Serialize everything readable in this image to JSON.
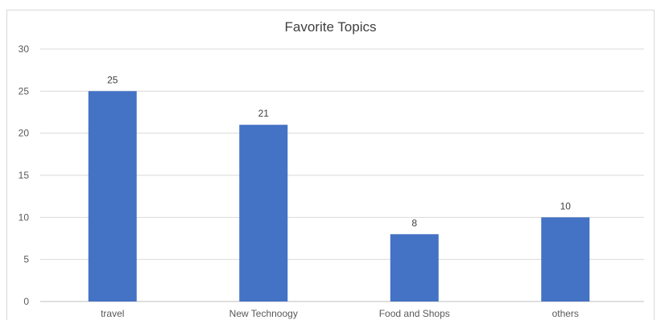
{
  "chart_data": {
    "type": "bar",
    "title": "Favorite Topics",
    "categories": [
      "travel",
      "New Technoogy",
      "Food and Shops",
      "others"
    ],
    "values": [
      25,
      21,
      8,
      10
    ],
    "ylim": [
      0,
      30
    ],
    "yticks": [
      0,
      5,
      10,
      15,
      20,
      25,
      30
    ],
    "bar_color": "#4472c4",
    "gridlines": true,
    "data_labels": true,
    "legend": "none"
  }
}
